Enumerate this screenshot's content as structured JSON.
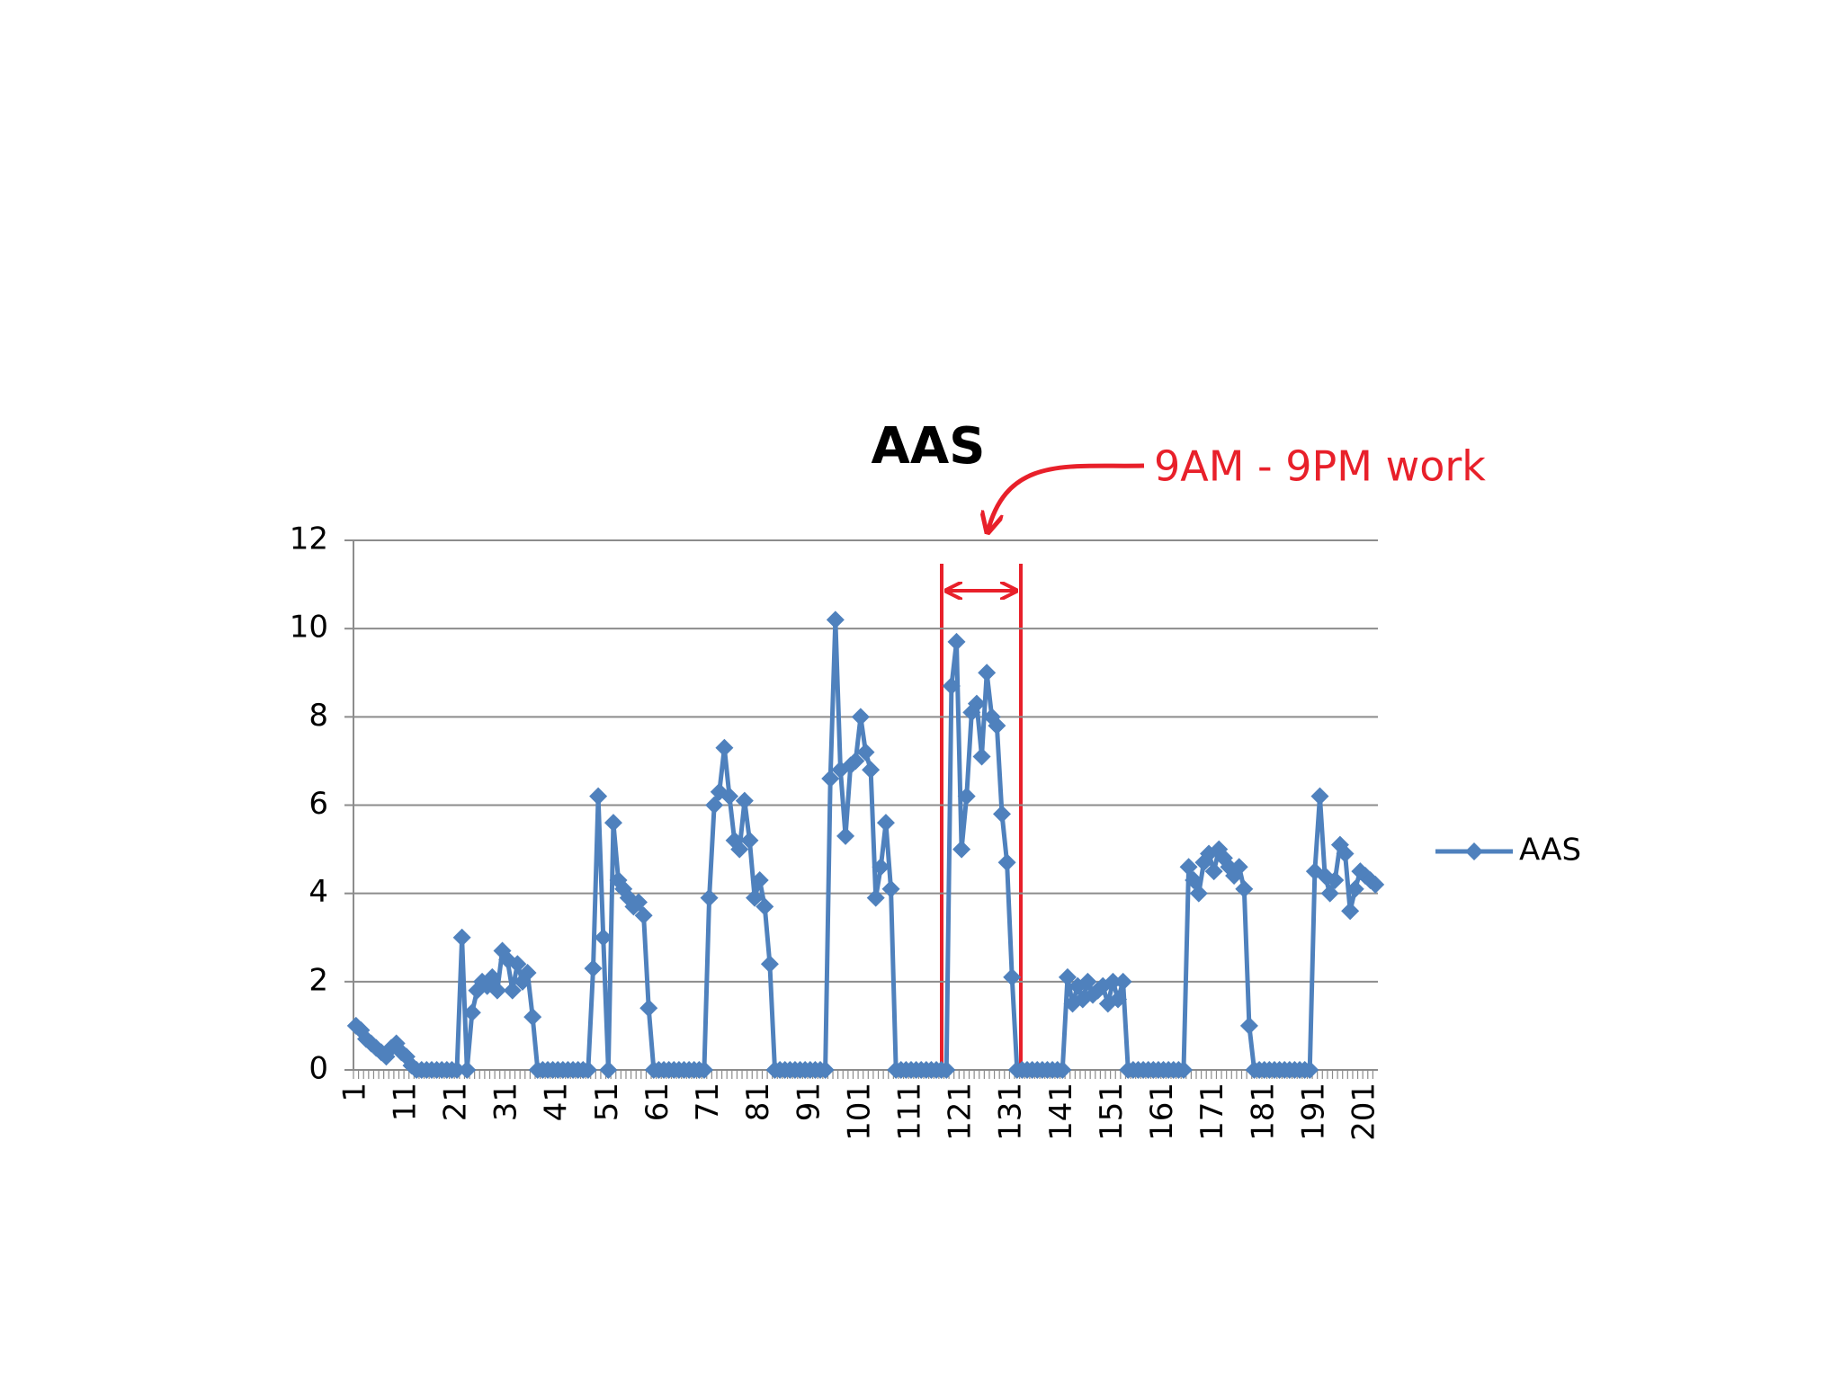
{
  "chart_data": {
    "type": "line",
    "title": "AAS",
    "annotation": "9AM - 9PM work",
    "categories": [
      "1",
      null,
      null,
      null,
      null,
      null,
      null,
      null,
      null,
      null,
      "11",
      null,
      null,
      null,
      null,
      null,
      null,
      null,
      null,
      null,
      "21",
      null,
      null,
      null,
      null,
      null,
      null,
      null,
      null,
      null,
      "31",
      null,
      null,
      null,
      null,
      null,
      null,
      null,
      null,
      null,
      "41",
      null,
      null,
      null,
      null,
      null,
      null,
      null,
      null,
      null,
      "51",
      null,
      null,
      null,
      null,
      null,
      null,
      null,
      null,
      null,
      "61",
      null,
      null,
      null,
      null,
      null,
      null,
      null,
      null,
      null,
      "71",
      null,
      null,
      null,
      null,
      null,
      null,
      null,
      null,
      null,
      "81",
      null,
      null,
      null,
      null,
      null,
      null,
      null,
      null,
      null,
      "91",
      null,
      null,
      null,
      null,
      null,
      null,
      null,
      null,
      null,
      "101",
      null,
      null,
      null,
      null,
      null,
      null,
      null,
      null,
      null,
      "111",
      null,
      null,
      null,
      null,
      null,
      null,
      null,
      null,
      null,
      "121",
      null,
      null,
      null,
      null,
      null,
      null,
      null,
      null,
      null,
      "131",
      null,
      null,
      null,
      null,
      null,
      null,
      null,
      null,
      null,
      "141",
      null,
      null,
      null,
      null,
      null,
      null,
      null,
      null,
      null,
      "151",
      null,
      null,
      null,
      null,
      null,
      null,
      null,
      null,
      null,
      "161",
      null,
      null,
      null,
      null,
      null,
      null,
      null,
      null,
      null,
      "171",
      null,
      null,
      null,
      null,
      null,
      null,
      null,
      null,
      null,
      "181",
      null,
      null,
      null,
      null,
      null,
      null,
      null,
      null,
      null,
      "191",
      null,
      null,
      null,
      null,
      null,
      null,
      null,
      null,
      null,
      "201",
      null,
      null
    ],
    "series": [
      {
        "name": "AAS",
        "color": "#4f81bd",
        "values": [
          1,
          0.9,
          0.7,
          0.6,
          0.5,
          0.4,
          0.3,
          0.5,
          0.6,
          0.4,
          0.3,
          0.1,
          0,
          0,
          0,
          0,
          0,
          0,
          0,
          0,
          0,
          3,
          0,
          1.3,
          1.8,
          2,
          1.9,
          2.1,
          1.8,
          2.7,
          2.5,
          1.8,
          2.4,
          2,
          2.2,
          1.2,
          0,
          0,
          0,
          0,
          0,
          0,
          0,
          0,
          0,
          0,
          0,
          2.3,
          6.2,
          3,
          0,
          5.6,
          4.3,
          4.1,
          3.9,
          3.7,
          3.8,
          3.5,
          1.4,
          0,
          0,
          0,
          0,
          0,
          0,
          0,
          0,
          0,
          0,
          0,
          3.9,
          6,
          6.3,
          7.3,
          6.2,
          5.2,
          5,
          6.1,
          5.2,
          3.9,
          4.3,
          3.7,
          2.4,
          0,
          0,
          0,
          0,
          0,
          0,
          0,
          0,
          0,
          0,
          0,
          6.6,
          10.2,
          6.8,
          5.3,
          6.9,
          7,
          8,
          7.2,
          6.8,
          3.9,
          4.6,
          5.6,
          4.1,
          0,
          0,
          0,
          0,
          0,
          0,
          0,
          0,
          0,
          0,
          0,
          8.7,
          9.7,
          5,
          6.2,
          8.1,
          8.3,
          7.1,
          9,
          8,
          7.8,
          5.8,
          4.7,
          2.1,
          0,
          0,
          0,
          0,
          0,
          0,
          0,
          0,
          0,
          0,
          2.1,
          1.5,
          1.9,
          1.6,
          2,
          1.7,
          1.8,
          1.9,
          1.5,
          2,
          1.6,
          2,
          0,
          0,
          0,
          0,
          0,
          0,
          0,
          0,
          0,
          0,
          0,
          0,
          4.6,
          4.3,
          4,
          4.7,
          4.9,
          4.5,
          5,
          4.8,
          4.6,
          4.4,
          4.6,
          4.1,
          1,
          0,
          0,
          0,
          0,
          0,
          0,
          0,
          0,
          0,
          0,
          0,
          0,
          4.5,
          6.2,
          4.4,
          4,
          4.3,
          5.1,
          4.9,
          3.6,
          4.1,
          4.5,
          4.4,
          4.3,
          4.2
        ]
      }
    ],
    "ylim": [
      0,
      12
    ],
    "yticks": [
      0,
      2,
      4,
      6,
      8,
      10,
      12
    ],
    "grid": true,
    "legend": "right"
  }
}
